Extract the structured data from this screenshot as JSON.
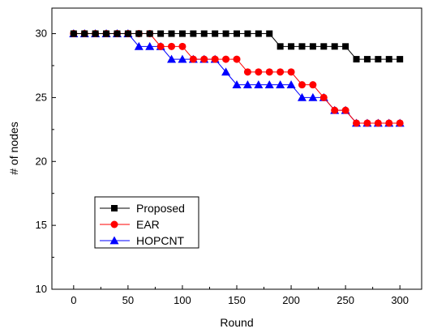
{
  "chart_data": {
    "type": "line",
    "xlabel": "Round",
    "ylabel": "# of nodes",
    "xlim": [
      -20,
      320
    ],
    "ylim": [
      10,
      32
    ],
    "xticks": [
      0,
      50,
      100,
      150,
      200,
      250,
      300
    ],
    "yticks": [
      10,
      15,
      20,
      25,
      30
    ],
    "grid": false,
    "legend_position": "lower-left",
    "series": [
      {
        "name": "Proposed",
        "color": "#000000",
        "marker": "square",
        "x": [
          0,
          10,
          20,
          30,
          40,
          50,
          60,
          70,
          80,
          90,
          100,
          110,
          120,
          130,
          140,
          150,
          160,
          170,
          180,
          190,
          200,
          210,
          220,
          230,
          240,
          250,
          260,
          270,
          280,
          290,
          300
        ],
        "y": [
          30,
          30,
          30,
          30,
          30,
          30,
          30,
          30,
          30,
          30,
          30,
          30,
          30,
          30,
          30,
          30,
          30,
          30,
          30,
          29,
          29,
          29,
          29,
          29,
          29,
          29,
          28,
          28,
          28,
          28,
          28
        ]
      },
      {
        "name": "EAR",
        "color": "#ff0000",
        "marker": "circle",
        "x": [
          0,
          10,
          20,
          30,
          40,
          50,
          60,
          70,
          80,
          90,
          100,
          110,
          120,
          130,
          140,
          150,
          160,
          170,
          180,
          190,
          200,
          210,
          220,
          230,
          240,
          250,
          260,
          270,
          280,
          290,
          300
        ],
        "y": [
          30,
          30,
          30,
          30,
          30,
          30,
          30,
          30,
          29,
          29,
          29,
          28,
          28,
          28,
          28,
          28,
          27,
          27,
          27,
          27,
          27,
          26,
          26,
          25,
          24,
          24,
          23,
          23,
          23,
          23,
          23
        ]
      },
      {
        "name": "HOPCNT",
        "color": "#0000ff",
        "marker": "triangle",
        "x": [
          0,
          10,
          20,
          30,
          40,
          50,
          60,
          70,
          80,
          90,
          100,
          110,
          120,
          130,
          140,
          150,
          160,
          170,
          180,
          190,
          200,
          210,
          220,
          230,
          240,
          250,
          260,
          270,
          280,
          290,
          300
        ],
        "y": [
          30,
          30,
          30,
          30,
          30,
          30,
          29,
          29,
          29,
          28,
          28,
          28,
          28,
          28,
          27,
          26,
          26,
          26,
          26,
          26,
          26,
          25,
          25,
          25,
          24,
          24,
          23,
          23,
          23,
          23,
          23
        ]
      }
    ]
  }
}
